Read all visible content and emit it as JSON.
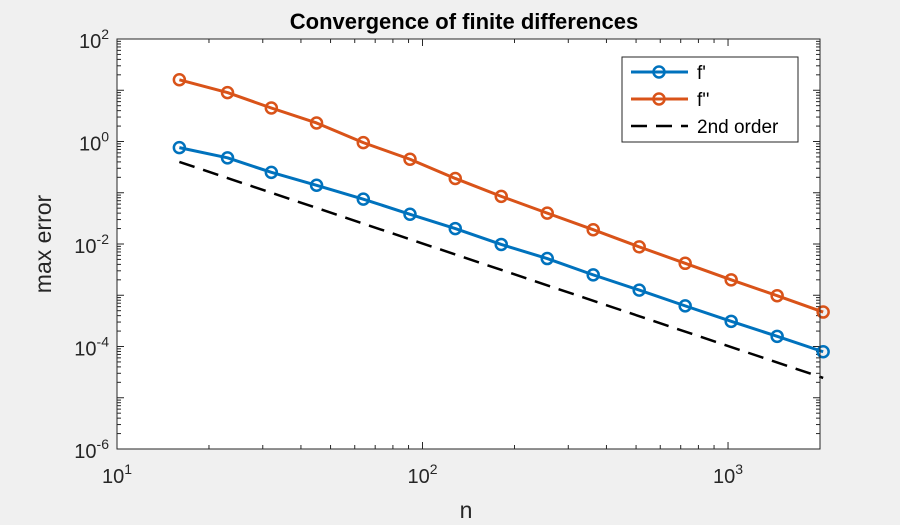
{
  "chart_data": {
    "type": "line",
    "title": "Convergence of finite differences",
    "xlabel": "n",
    "ylabel": "max error",
    "xscale": "log",
    "yscale": "log",
    "xlim": [
      10,
      2000
    ],
    "ylim": [
      1e-06,
      100
    ],
    "grid": false,
    "legend_position": "top-right",
    "x_ticks": [
      {
        "value": 10,
        "base": "10",
        "exp": "1"
      },
      {
        "value": 100,
        "base": "10",
        "exp": "2"
      },
      {
        "value": 1000,
        "base": "10",
        "exp": "3"
      }
    ],
    "y_ticks": [
      {
        "value": 1e-06,
        "base": "10",
        "exp": "-6"
      },
      {
        "value": 0.0001,
        "base": "10",
        "exp": "-4"
      },
      {
        "value": 0.01,
        "base": "10",
        "exp": "-2"
      },
      {
        "value": 1,
        "base": "10",
        "exp": "0"
      },
      {
        "value": 100,
        "base": "10",
        "exp": "2"
      }
    ],
    "x": [
      16,
      23,
      32,
      45,
      64,
      91,
      128,
      181,
      256,
      362,
      512,
      724,
      1024,
      1448,
      2048
    ],
    "series": [
      {
        "name": "f'",
        "color": "#0072bd",
        "style": "solid",
        "marker": "circle",
        "values": [
          0.76,
          0.48,
          0.25,
          0.14,
          0.075,
          0.038,
          0.02,
          0.0098,
          0.0052,
          0.0025,
          0.00126,
          0.00062,
          0.00031,
          0.000158,
          7.9e-05
        ]
      },
      {
        "name": "f''",
        "color": "#d95319",
        "style": "solid",
        "marker": "circle",
        "values": [
          16,
          9,
          4.5,
          2.3,
          0.95,
          0.45,
          0.19,
          0.085,
          0.04,
          0.019,
          0.0088,
          0.0042,
          0.002,
          0.00098,
          0.00047
        ]
      },
      {
        "name": "2nd order",
        "color": "#000000",
        "style": "dashed",
        "marker": "none",
        "x": [
          16,
          2048
        ],
        "values": [
          0.4,
          2.44e-05
        ]
      }
    ]
  }
}
